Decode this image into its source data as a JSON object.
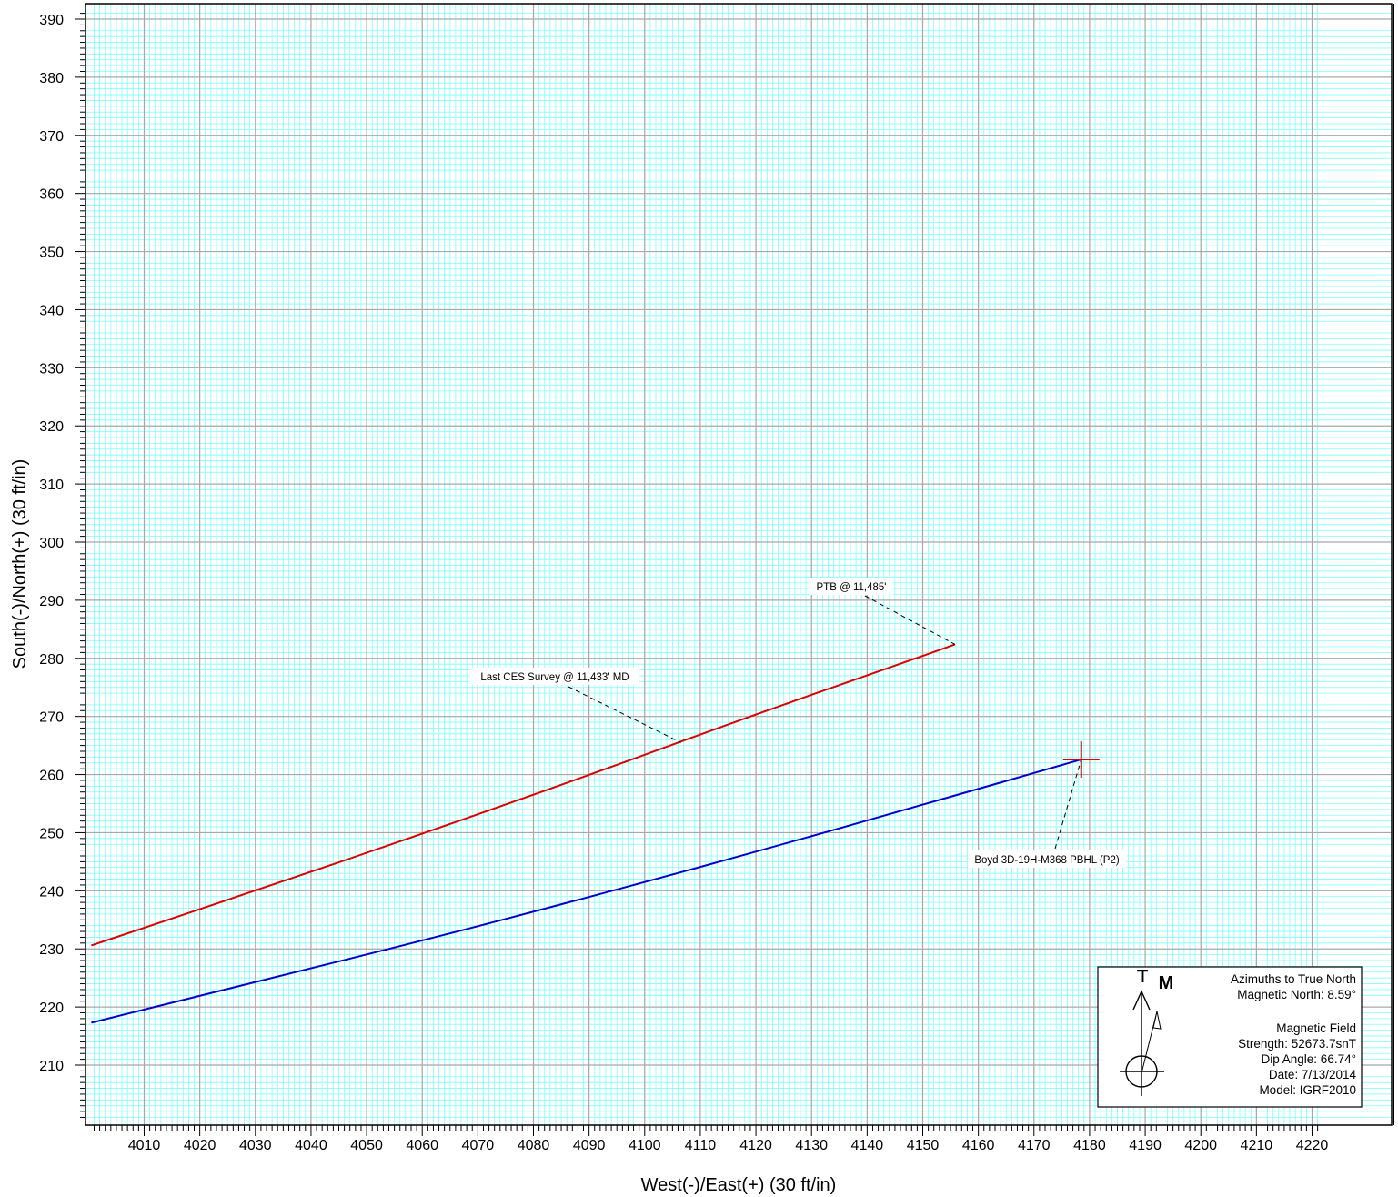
{
  "chart_data": {
    "type": "line",
    "xlabel": "West(-)/East(+) (30 ft/in)",
    "ylabel": "South(-)/North(+) (30 ft/in)",
    "xlim": [
      4000.5,
      4221.5
    ],
    "ylim": [
      201,
      391
    ],
    "xticks": [
      4010,
      4020,
      4030,
      4040,
      4050,
      4060,
      4070,
      4080,
      4090,
      4100,
      4110,
      4120,
      4130,
      4140,
      4150,
      4160,
      4170,
      4180,
      4190,
      4200,
      4210,
      4220
    ],
    "yticks": [
      210,
      220,
      230,
      240,
      250,
      260,
      270,
      280,
      290,
      300,
      310,
      320,
      330,
      340,
      350,
      360,
      370,
      380,
      390
    ],
    "grid": true,
    "series": [
      {
        "color": "#dd0000",
        "x": [
          4000.5,
          4030,
          4060,
          4090,
          4120,
          4150,
          4155.8
        ],
        "y": [
          230.6,
          240.0,
          249.8,
          259.9,
          270.4,
          280.4,
          282.4
        ]
      },
      {
        "color": "#0000cc",
        "x": [
          4000.5,
          4030,
          4060,
          4090,
          4120,
          4150,
          4178.5
        ],
        "y": [
          217.3,
          224.3,
          231.4,
          238.9,
          246.7,
          254.8,
          262.6
        ]
      }
    ],
    "target": {
      "x": 4178.5,
      "y": 262.6,
      "color": "#dd0000"
    },
    "annotations": [
      {
        "text": "PTB @ 11,485'",
        "x": 4155.8,
        "y": 282.4
      },
      {
        "text": "Last CES Survey @ 11,433' MD",
        "x": 4106.5,
        "y": 265.5
      },
      {
        "text": "Boyd 3D-19H-M368 PBHL (P2)",
        "x": 4178.5,
        "y": 262.6
      }
    ]
  },
  "legend": {
    "true_letter": "T",
    "mag_letter": "M",
    "lines": [
      "Azimuths to True North",
      "Magnetic North: 8.59°",
      "",
      "Magnetic Field",
      "Strength: 52673.7snT",
      "Dip Angle: 66.74°",
      "Date: 7/13/2014",
      "Model: IGRF2010"
    ]
  },
  "colors": {
    "grid_minor": "#7fffff",
    "grid_major": "#a8a8a8",
    "frame": "#000000"
  }
}
